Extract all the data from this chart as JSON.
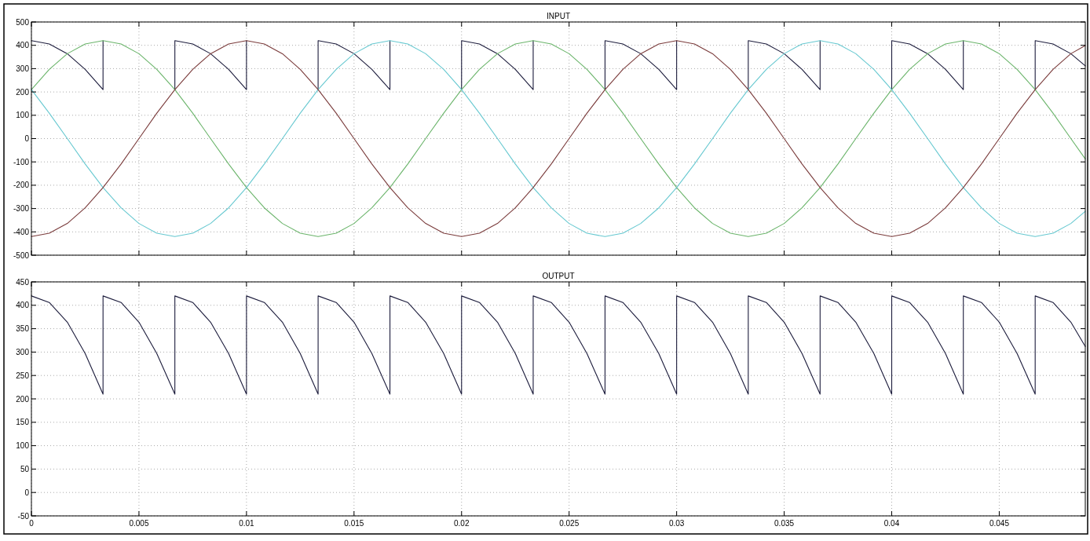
{
  "chart_data": [
    {
      "type": "line",
      "title": "INPUT",
      "x": [
        0,
        0.00083,
        0.00167,
        0.0025,
        0.00333,
        0.00417,
        0.005,
        0.00583,
        0.00667,
        0.0075,
        0.00833,
        0.00917,
        0.01,
        0.01083,
        0.01167,
        0.0125,
        0.01333,
        0.01417,
        0.015,
        0.01583,
        0.01667,
        0.0175,
        0.01833,
        0.01917,
        0.02,
        0.02083,
        0.02167,
        0.0225,
        0.02333,
        0.02417,
        0.025,
        0.02583,
        0.02667,
        0.0275,
        0.02833,
        0.02917,
        0.03,
        0.03083,
        0.03167,
        0.0325,
        0.03333,
        0.03417,
        0.035,
        0.03583,
        0.03667,
        0.0375,
        0.03833,
        0.03917,
        0.04,
        0.04083,
        0.04167,
        0.0425,
        0.04333,
        0.04417,
        0.045,
        0.04583,
        0.04667,
        0.0475,
        0.04833,
        0.049
      ],
      "series": [
        {
          "color": "#1c1c3c",
          "x": [
            0,
            0.00083,
            0.00167,
            0.0025,
            0.00333,
            0.00333,
            0.00417,
            0.005,
            0.00583,
            0.00667,
            0.00667,
            0.0075,
            0.00833,
            0.00917,
            0.01,
            0.01,
            0.01083,
            0.01167,
            0.0125,
            0.01333,
            0.01333,
            0.01417,
            0.015,
            0.01583,
            0.01667,
            0.01667,
            0.0175,
            0.01833,
            0.01917,
            0.02,
            0.02,
            0.02083,
            0.02167,
            0.0225,
            0.02333,
            0.02333,
            0.02417,
            0.025,
            0.02583,
            0.02667,
            0.02667,
            0.0275,
            0.02833,
            0.02917,
            0.03,
            0.03,
            0.03083,
            0.03167,
            0.0325,
            0.03333,
            0.03333,
            0.03417,
            0.035,
            0.03583,
            0.03667,
            0.03667,
            0.0375,
            0.03833,
            0.03917,
            0.04,
            0.04,
            0.04083,
            0.04167,
            0.0425,
            0.04333,
            0.04333,
            0.04417,
            0.045,
            0.04583,
            0.04667,
            0.04667,
            0.0475,
            0.04833,
            0.049
          ],
          "values": [
            420,
            406,
            364,
            297,
            210,
            420,
            null,
            null,
            null,
            210,
            420,
            406,
            364,
            297,
            210,
            420,
            null,
            null,
            null,
            210,
            420,
            406,
            364,
            297,
            210,
            420,
            null,
            null,
            null,
            210,
            420,
            406,
            364,
            297,
            210,
            420,
            null,
            null,
            null,
            210,
            420,
            406,
            364,
            297,
            210,
            420,
            null,
            null,
            null,
            210,
            420,
            406,
            364,
            297,
            210,
            420,
            null,
            null,
            null,
            210,
            420,
            406,
            364,
            297,
            210,
            420,
            null,
            null,
            null,
            210,
            420,
            406,
            364,
            312
          ]
        },
        {
          "color": "#6ab46a",
          "values": [
            210,
            297,
            364,
            406,
            420,
            406,
            364,
            297,
            210,
            109,
            0,
            -109,
            -210,
            -297,
            -364,
            -406,
            -420,
            -406,
            -364,
            -297,
            -210,
            -109,
            0,
            109,
            210,
            297,
            364,
            406,
            420,
            406,
            364,
            297,
            210,
            109,
            0,
            -109,
            -210,
            -297,
            -364,
            -406,
            -420,
            -406,
            -364,
            -297,
            -210,
            -109,
            0,
            109,
            210,
            297,
            364,
            406,
            420,
            406,
            364,
            297,
            210,
            109,
            0,
            -87
          ]
        },
        {
          "color": "#66c8d0",
          "values": [
            210,
            109,
            0,
            -109,
            -210,
            -297,
            -364,
            -406,
            -420,
            -406,
            -364,
            -297,
            -210,
            -109,
            0,
            109,
            210,
            297,
            364,
            406,
            420,
            406,
            364,
            297,
            210,
            109,
            0,
            -109,
            -210,
            -297,
            -364,
            -406,
            -420,
            -406,
            -364,
            -297,
            -210,
            -109,
            0,
            109,
            210,
            297,
            364,
            406,
            420,
            406,
            364,
            297,
            210,
            109,
            0,
            -109,
            -210,
            -297,
            -364,
            -406,
            -420,
            -406,
            -364,
            -312
          ]
        },
        {
          "color": "#7a3b3b",
          "values": [
            -420,
            -406,
            -364,
            -297,
            -210,
            -109,
            0,
            109,
            210,
            297,
            364,
            406,
            420,
            406,
            364,
            297,
            210,
            109,
            0,
            -109,
            -210,
            -297,
            -364,
            -406,
            -420,
            -406,
            -364,
            -297,
            -210,
            -109,
            0,
            109,
            210,
            297,
            364,
            406,
            420,
            406,
            364,
            297,
            210,
            109,
            0,
            -109,
            -210,
            -297,
            -364,
            -406,
            -420,
            -406,
            -364,
            -297,
            -210,
            -109,
            0,
            109,
            210,
            297,
            364,
            399
          ]
        }
      ],
      "xlim": [
        0,
        0.049
      ],
      "xticks": [
        0,
        0.005,
        0.01,
        0.015,
        0.02,
        0.025,
        0.03,
        0.035,
        0.04,
        0.045
      ],
      "ylim": [
        -500,
        500
      ],
      "yticks": [
        -500,
        -400,
        -300,
        -200,
        -100,
        0,
        100,
        200,
        300,
        400,
        500
      ],
      "grid": true,
      "tick_labels": "y"
    },
    {
      "type": "line",
      "title": "OUTPUT",
      "x": [
        0,
        0.00083,
        0.00167,
        0.0025,
        0.00333,
        0.00333,
        0.00417,
        0.005,
        0.00583,
        0.00667,
        0.00667,
        0.0075,
        0.00833,
        0.00917,
        0.01,
        0.01,
        0.01083,
        0.01167,
        0.0125,
        0.01333,
        0.01333,
        0.01417,
        0.015,
        0.01583,
        0.01667,
        0.01667,
        0.0175,
        0.01833,
        0.01917,
        0.02,
        0.02,
        0.02083,
        0.02167,
        0.0225,
        0.02333,
        0.02333,
        0.02417,
        0.025,
        0.02583,
        0.02667,
        0.02667,
        0.0275,
        0.02833,
        0.02917,
        0.03,
        0.03,
        0.03083,
        0.03167,
        0.0325,
        0.03333,
        0.03333,
        0.03417,
        0.035,
        0.03583,
        0.03667,
        0.03667,
        0.0375,
        0.03833,
        0.03917,
        0.04,
        0.04,
        0.04083,
        0.04167,
        0.0425,
        0.04333,
        0.04333,
        0.04417,
        0.045,
        0.04583,
        0.04667,
        0.04667,
        0.0475,
        0.04833,
        0.049
      ],
      "series": [
        {
          "color": "#1c1c3c",
          "values": [
            420,
            406,
            364,
            297,
            210,
            420,
            406,
            364,
            297,
            210,
            420,
            406,
            364,
            297,
            210,
            420,
            406,
            364,
            297,
            210,
            420,
            406,
            364,
            297,
            210,
            420,
            406,
            364,
            297,
            210,
            420,
            406,
            364,
            297,
            210,
            420,
            406,
            364,
            297,
            210,
            420,
            406,
            364,
            297,
            210,
            420,
            406,
            364,
            297,
            210,
            420,
            406,
            364,
            297,
            210,
            420,
            406,
            364,
            297,
            210,
            420,
            406,
            364,
            297,
            210,
            420,
            406,
            364,
            297,
            210,
            420,
            406,
            364,
            312
          ]
        }
      ],
      "xlim": [
        0,
        0.049
      ],
      "xticks": [
        0,
        0.005,
        0.01,
        0.015,
        0.02,
        0.025,
        0.03,
        0.035,
        0.04,
        0.045
      ],
      "ylim": [
        -50,
        450
      ],
      "yticks": [
        -50,
        0,
        50,
        100,
        150,
        200,
        250,
        300,
        350,
        400,
        450
      ],
      "grid": true
    }
  ]
}
